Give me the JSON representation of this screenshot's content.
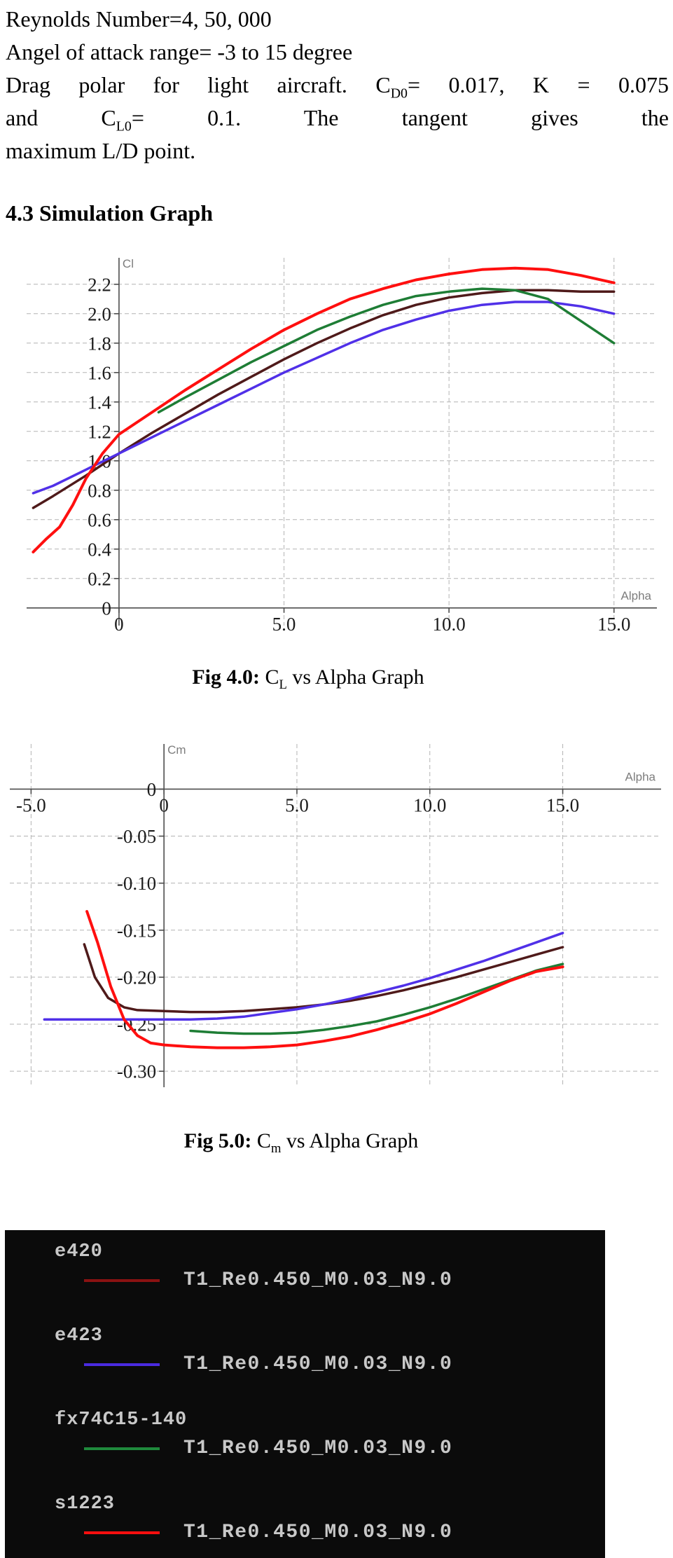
{
  "intro": {
    "line1": "Reynolds Number=4, 50, 000",
    "line2": "Angel of attack range= -3 to 15 degree",
    "para": {
      "l1a": "Drag polar for light aircraft. C",
      "l1sub": "D0",
      "l1b": "= 0.017,  K  =  0.075",
      "l2a": "and C",
      "l2sub": "L0",
      "l2b": "= 0.1. The tangent gives the",
      "l3": "maximum L/D point."
    }
  },
  "section": {
    "heading": "4.3 Simulation Graph"
  },
  "captions": {
    "fig4": {
      "bold": "Fig 4.0:",
      "pre": " C",
      "sub": "L",
      "post": " vs Alpha Graph"
    },
    "fig5": {
      "bold": "Fig 5.0:",
      "pre": " C",
      "sub": "m",
      "post": " vs Alpha Graph"
    }
  },
  "chart_data": [
    {
      "id": "cl-vs-alpha",
      "type": "line",
      "title": "",
      "ylabel": "Cl",
      "xlabel": "Alpha",
      "xlim": [
        -2.8,
        16.3
      ],
      "ylim": [
        -0.12,
        2.38
      ],
      "x_axis_at": 0,
      "y_axis_at": 0,
      "grid": true,
      "grid_color": "#b3b3b3",
      "axis_color": "#4d4d4d",
      "pad_bottom": 35,
      "xticks": [
        {
          "v": 0,
          "label": "0"
        },
        {
          "v": 5,
          "label": "5.0"
        },
        {
          "v": 10,
          "label": "10.0"
        },
        {
          "v": 15,
          "label": "15.0"
        }
      ],
      "yticks": [
        {
          "v": 0,
          "label": "0"
        },
        {
          "v": 0.2,
          "label": "0.2"
        },
        {
          "v": 0.4,
          "label": "0.4"
        },
        {
          "v": 0.6,
          "label": "0.6"
        },
        {
          "v": 0.8,
          "label": "0.8"
        },
        {
          "v": 1.0,
          "label": "1.0"
        },
        {
          "v": 1.2,
          "label": "1.2"
        },
        {
          "v": 1.4,
          "label": "1.4"
        },
        {
          "v": 1.6,
          "label": "1.6"
        },
        {
          "v": 1.8,
          "label": "1.8"
        },
        {
          "v": 2.0,
          "label": "2.0"
        },
        {
          "v": 2.2,
          "label": "2.2"
        }
      ],
      "series": [
        {
          "name": "e420",
          "color": "#4f1a1a",
          "width": 3.5,
          "points": [
            [
              -2.6,
              0.68
            ],
            [
              -2,
              0.76
            ],
            [
              -1,
              0.9
            ],
            [
              0,
              1.05
            ],
            [
              1,
              1.19
            ],
            [
              2,
              1.32
            ],
            [
              3,
              1.45
            ],
            [
              4,
              1.57
            ],
            [
              5,
              1.69
            ],
            [
              6,
              1.8
            ],
            [
              7,
              1.9
            ],
            [
              8,
              1.99
            ],
            [
              9,
              2.06
            ],
            [
              10,
              2.11
            ],
            [
              11,
              2.14
            ],
            [
              12,
              2.16
            ],
            [
              13,
              2.16
            ],
            [
              14,
              2.15
            ],
            [
              15,
              2.15
            ]
          ]
        },
        {
          "name": "e423",
          "color": "#5030e8",
          "width": 3.5,
          "points": [
            [
              -2.6,
              0.78
            ],
            [
              -2,
              0.83
            ],
            [
              -1,
              0.94
            ],
            [
              0,
              1.05
            ],
            [
              1,
              1.16
            ],
            [
              2,
              1.27
            ],
            [
              3,
              1.38
            ],
            [
              4,
              1.49
            ],
            [
              5,
              1.6
            ],
            [
              6,
              1.7
            ],
            [
              7,
              1.8
            ],
            [
              8,
              1.89
            ],
            [
              9,
              1.96
            ],
            [
              10,
              2.02
            ],
            [
              11,
              2.06
            ],
            [
              12,
              2.08
            ],
            [
              13,
              2.08
            ],
            [
              14,
              2.05
            ],
            [
              15,
              2.0
            ]
          ]
        },
        {
          "name": "fx74C15-140",
          "color": "#1e7d35",
          "width": 3.5,
          "points": [
            [
              1.2,
              1.33
            ],
            [
              2,
              1.43
            ],
            [
              3,
              1.55
            ],
            [
              4,
              1.67
            ],
            [
              5,
              1.78
            ],
            [
              6,
              1.89
            ],
            [
              7,
              1.98
            ],
            [
              8,
              2.06
            ],
            [
              9,
              2.12
            ],
            [
              10,
              2.15
            ],
            [
              11,
              2.17
            ],
            [
              12,
              2.16
            ],
            [
              13,
              2.1
            ],
            [
              14,
              1.95
            ],
            [
              15,
              1.8
            ]
          ]
        },
        {
          "name": "s1223",
          "color": "#ff0f0f",
          "width": 4,
          "points": [
            [
              -2.6,
              0.38
            ],
            [
              -2.2,
              0.47
            ],
            [
              -1.8,
              0.55
            ],
            [
              -1.4,
              0.7
            ],
            [
              -1,
              0.88
            ],
            [
              -0.5,
              1.05
            ],
            [
              0,
              1.18
            ],
            [
              1,
              1.33
            ],
            [
              2,
              1.48
            ],
            [
              3,
              1.62
            ],
            [
              4,
              1.76
            ],
            [
              5,
              1.89
            ],
            [
              6,
              2.0
            ],
            [
              7,
              2.1
            ],
            [
              8,
              2.17
            ],
            [
              9,
              2.23
            ],
            [
              10,
              2.27
            ],
            [
              11,
              2.3
            ],
            [
              12,
              2.31
            ],
            [
              13,
              2.3
            ],
            [
              14,
              2.26
            ],
            [
              15,
              2.21
            ]
          ]
        }
      ]
    },
    {
      "id": "cm-vs-alpha",
      "type": "line",
      "title": "",
      "ylabel": "Cm",
      "xlabel": "Alpha",
      "xlim": [
        -5.8,
        18.7
      ],
      "ylim": [
        -0.317,
        0.048
      ],
      "x_axis_at": 0,
      "y_axis_at": 0,
      "grid": true,
      "grid_color": "#b3b3b3",
      "axis_color": "#4d4d4d",
      "pad_bottom": 0,
      "xticks": [
        {
          "v": -5,
          "label": "-5.0"
        },
        {
          "v": 0,
          "label": "0"
        },
        {
          "v": 5,
          "label": "5.0"
        },
        {
          "v": 10,
          "label": "10.0"
        },
        {
          "v": 15,
          "label": "15.0"
        }
      ],
      "yticks": [
        {
          "v": 0,
          "label": "0"
        },
        {
          "v": -0.05,
          "label": "-0.05"
        },
        {
          "v": -0.1,
          "label": "-0.10"
        },
        {
          "v": -0.15,
          "label": "-0.15"
        },
        {
          "v": -0.2,
          "label": "-0.20"
        },
        {
          "v": -0.25,
          "label": "-0.25"
        },
        {
          "v": -0.3,
          "label": "-0.30"
        }
      ],
      "series": [
        {
          "name": "e420",
          "color": "#4f1a1a",
          "width": 3.5,
          "points": [
            [
              -3,
              -0.165
            ],
            [
              -2.6,
              -0.2
            ],
            [
              -2.1,
              -0.222
            ],
            [
              -1.5,
              -0.232
            ],
            [
              -1,
              -0.235
            ],
            [
              0,
              -0.236
            ],
            [
              1,
              -0.237
            ],
            [
              2,
              -0.237
            ],
            [
              3,
              -0.236
            ],
            [
              4,
              -0.234
            ],
            [
              5,
              -0.232
            ],
            [
              6,
              -0.229
            ],
            [
              7,
              -0.225
            ],
            [
              8,
              -0.22
            ],
            [
              9,
              -0.214
            ],
            [
              10,
              -0.207
            ],
            [
              11,
              -0.2
            ],
            [
              12,
              -0.192
            ],
            [
              13,
              -0.184
            ],
            [
              14,
              -0.176
            ],
            [
              15,
              -0.168
            ]
          ]
        },
        {
          "name": "e423",
          "color": "#5030e8",
          "width": 3.5,
          "points": [
            [
              -4.5,
              -0.245
            ],
            [
              -3,
              -0.245
            ],
            [
              -1.5,
              -0.245
            ],
            [
              0,
              -0.245
            ],
            [
              1,
              -0.245
            ],
            [
              2,
              -0.244
            ],
            [
              3,
              -0.242
            ],
            [
              4,
              -0.238
            ],
            [
              5,
              -0.234
            ],
            [
              6,
              -0.229
            ],
            [
              7,
              -0.223
            ],
            [
              8,
              -0.216
            ],
            [
              9,
              -0.209
            ],
            [
              10,
              -0.201
            ],
            [
              11,
              -0.192
            ],
            [
              12,
              -0.183
            ],
            [
              13,
              -0.173
            ],
            [
              14,
              -0.163
            ],
            [
              15,
              -0.153
            ]
          ]
        },
        {
          "name": "fx74C15-140",
          "color": "#1e7d35",
          "width": 3.5,
          "points": [
            [
              1,
              -0.257
            ],
            [
              2,
              -0.259
            ],
            [
              3,
              -0.26
            ],
            [
              4,
              -0.26
            ],
            [
              5,
              -0.259
            ],
            [
              6,
              -0.256
            ],
            [
              7,
              -0.252
            ],
            [
              8,
              -0.247
            ],
            [
              9,
              -0.24
            ],
            [
              10,
              -0.232
            ],
            [
              11,
              -0.223
            ],
            [
              12,
              -0.213
            ],
            [
              13,
              -0.203
            ],
            [
              14,
              -0.193
            ],
            [
              15,
              -0.186
            ]
          ]
        },
        {
          "name": "s1223",
          "color": "#ff0f0f",
          "width": 4,
          "points": [
            [
              -2.9,
              -0.13
            ],
            [
              -2.5,
              -0.163
            ],
            [
              -2,
              -0.21
            ],
            [
              -1.5,
              -0.245
            ],
            [
              -1,
              -0.262
            ],
            [
              -0.5,
              -0.27
            ],
            [
              0,
              -0.272
            ],
            [
              1,
              -0.274
            ],
            [
              2,
              -0.275
            ],
            [
              3,
              -0.275
            ],
            [
              4,
              -0.274
            ],
            [
              5,
              -0.272
            ],
            [
              6,
              -0.268
            ],
            [
              7,
              -0.263
            ],
            [
              8,
              -0.256
            ],
            [
              9,
              -0.248
            ],
            [
              10,
              -0.239
            ],
            [
              11,
              -0.228
            ],
            [
              12,
              -0.216
            ],
            [
              13,
              -0.204
            ],
            [
              14,
              -0.194
            ],
            [
              15,
              -0.189
            ]
          ]
        }
      ]
    }
  ],
  "legend": {
    "bg": "#0b0b0b",
    "text_color": "#c8c8c8",
    "entries": [
      {
        "name": "e420",
        "label": "T1_Re0.450_M0.03_N9.0",
        "color": "#8b1212"
      },
      {
        "name": "e423",
        "label": "T1_Re0.450_M0.03_N9.0",
        "color": "#4a2be0"
      },
      {
        "name": "fx74C15-140",
        "label": "T1_Re0.450_M0.03_N9.0",
        "color": "#1f8a3c"
      },
      {
        "name": "s1223",
        "label": "T1_Re0.450_M0.03_N9.0",
        "color": "#ff0f0f"
      }
    ]
  }
}
